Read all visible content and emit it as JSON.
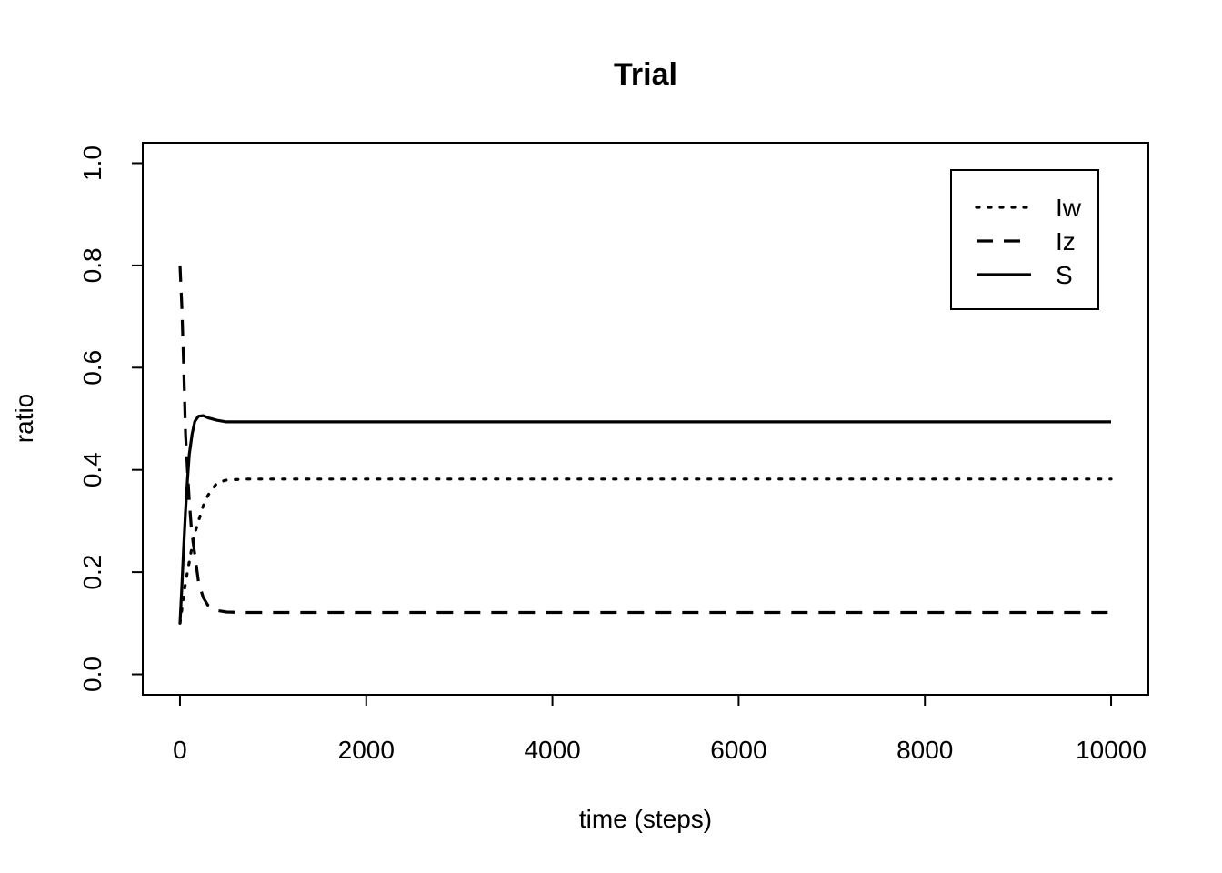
{
  "chart_data": {
    "type": "line",
    "title": "Trial",
    "xlabel": "time (steps)",
    "ylabel": "ratio",
    "xlim": [
      -400,
      10400
    ],
    "ylim": [
      -0.04,
      1.04
    ],
    "xticks": [
      0,
      2000,
      4000,
      6000,
      8000,
      10000
    ],
    "xtick_labels": [
      "0",
      "2000",
      "4000",
      "6000",
      "8000",
      "10000"
    ],
    "yticks": [
      0.0,
      0.2,
      0.4,
      0.6,
      0.8,
      1.0
    ],
    "ytick_labels": [
      "0.0",
      "0.2",
      "0.4",
      "0.6",
      "0.8",
      "1.0"
    ],
    "legend_position": "top-right",
    "series": [
      {
        "name": "Iw",
        "dash": "dotted",
        "x": [
          0,
          30,
          60,
          100,
          150,
          200,
          250,
          300,
          400,
          500,
          700,
          1000,
          10000
        ],
        "y": [
          0.1,
          0.14,
          0.18,
          0.22,
          0.27,
          0.3,
          0.33,
          0.35,
          0.375,
          0.38,
          0.382,
          0.382,
          0.382
        ]
      },
      {
        "name": "Iz",
        "dash": "dashed",
        "x": [
          0,
          20,
          40,
          60,
          80,
          100,
          120,
          140,
          170,
          200,
          250,
          300,
          400,
          500,
          700,
          10000
        ],
        "y": [
          0.8,
          0.72,
          0.6,
          0.47,
          0.4,
          0.34,
          0.29,
          0.26,
          0.22,
          0.18,
          0.15,
          0.135,
          0.125,
          0.122,
          0.121,
          0.121
        ]
      },
      {
        "name": "S",
        "dash": "solid",
        "x": [
          0,
          20,
          40,
          60,
          80,
          100,
          130,
          160,
          200,
          250,
          300,
          400,
          500,
          700,
          10000
        ],
        "y": [
          0.1,
          0.17,
          0.25,
          0.32,
          0.38,
          0.43,
          0.47,
          0.495,
          0.505,
          0.506,
          0.502,
          0.497,
          0.494,
          0.494,
          0.494
        ]
      }
    ]
  }
}
